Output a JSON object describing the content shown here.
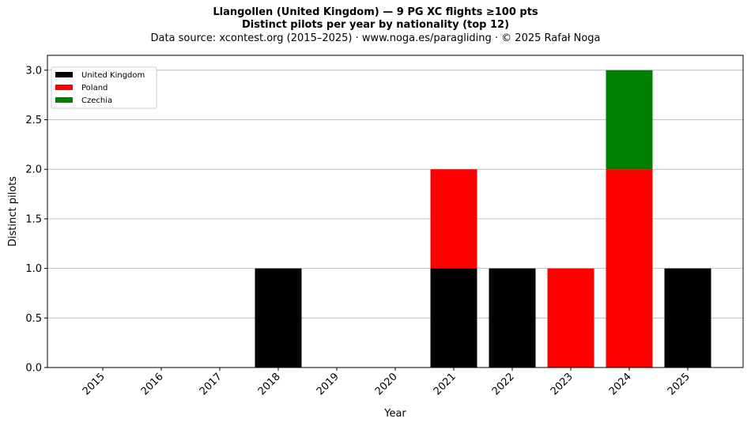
{
  "title_line1": "Llangollen (United Kingdom)  —  9 PG XC flights ≥100 pts",
  "title_line2": "Distinct pilots per year by nationality (top 12)",
  "subtitle": "Data source: xcontest.org (2015–2025)  ·  www.noga.es/paragliding  ·  © 2025 Rafał Noga",
  "chart_data": {
    "type": "bar",
    "stacked": true,
    "categories": [
      "2015",
      "2016",
      "2017",
      "2018",
      "2019",
      "2020",
      "2021",
      "2022",
      "2023",
      "2024",
      "2025"
    ],
    "series": [
      {
        "name": "United Kingdom",
        "color": "#000000",
        "values": [
          0,
          0,
          0,
          1,
          0,
          0,
          1,
          1,
          0,
          0,
          1
        ]
      },
      {
        "name": "Poland",
        "color": "#ff0000",
        "values": [
          0,
          0,
          0,
          0,
          0,
          0,
          1,
          0,
          1,
          2,
          0
        ]
      },
      {
        "name": "Czechia",
        "color": "#008000",
        "values": [
          0,
          0,
          0,
          0,
          0,
          0,
          0,
          0,
          0,
          1,
          0
        ]
      }
    ],
    "xlabel": "Year",
    "ylabel": "Distinct pilots",
    "ylim": [
      0,
      3.15
    ],
    "yticks": [
      "0.0",
      "0.5",
      "1.0",
      "1.5",
      "2.0",
      "2.5",
      "3.0"
    ],
    "grid": "y",
    "legend_position": "top-left"
  }
}
